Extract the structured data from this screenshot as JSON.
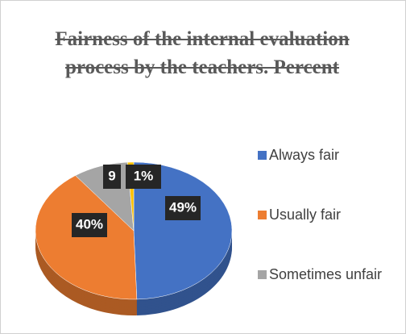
{
  "chart_data": {
    "type": "pie",
    "title": "Fairness of the internal evaluation process by the teachers. Percent",
    "categories": [
      "Always fair",
      "Usually fair",
      "Sometimes unfair",
      null
    ],
    "values": [
      49,
      40,
      9,
      1
    ],
    "value_labels": [
      "49%",
      "40%",
      "9",
      "1%"
    ],
    "colors": [
      "#4472c4",
      "#ed7d31",
      "#a5a5a5",
      "#ffc000"
    ]
  }
}
